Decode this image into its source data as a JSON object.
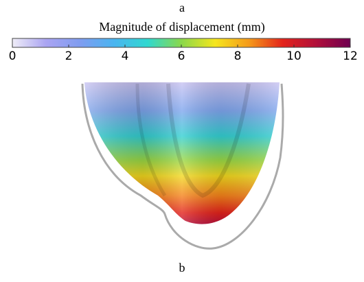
{
  "labels": {
    "top": "a",
    "bottom": "b"
  },
  "chart_data": {
    "type": "colorbar",
    "title": "Magnitude of displacement (mm)",
    "xlim": [
      0,
      12
    ],
    "xticks": [
      0,
      2,
      4,
      6,
      8,
      10,
      12
    ],
    "colormap": [
      "#efedf7",
      "#aaa4f2",
      "#7f9cf0",
      "#4ab4f0",
      "#30d8d0",
      "#8ad84a",
      "#f5e61e",
      "#f59a1a",
      "#e3231b",
      "#b00f3a",
      "#6e0050"
    ]
  }
}
